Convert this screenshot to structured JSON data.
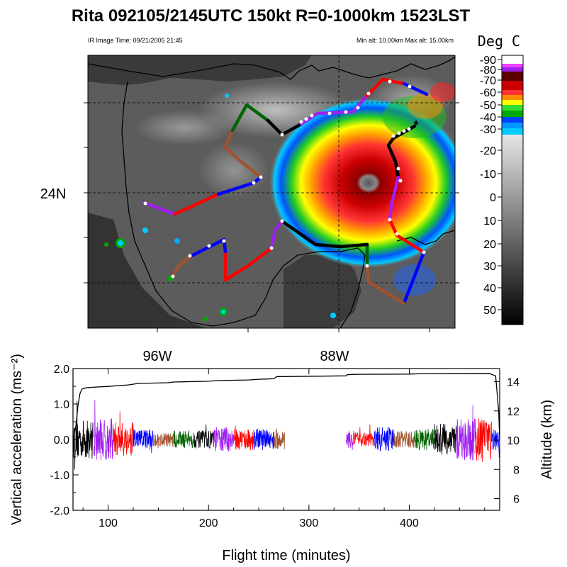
{
  "chart_data": [
    {
      "type": "map",
      "title": "Rita 092105/2145UTC 150kt  R=0-1000km 1523LST",
      "subtitle_left": "IR Image Time: 09/21/2005 21:45",
      "subtitle_right": "Min alt: 10.00km  Max alt: 15.00km",
      "lat_labels": [
        "24N"
      ],
      "lon_labels": [
        "96W",
        "88W"
      ],
      "colorbar": {
        "title": "Deg C",
        "tick_labels": [
          "-90",
          "-80",
          "-70",
          "-60",
          "-50",
          "-40",
          "-30",
          "-20",
          "-10",
          "0",
          "10",
          "20",
          "30",
          "40",
          "50"
        ],
        "colors": [
          "#ffffff",
          "#e040ff",
          "#5a0000",
          "#cc0000",
          "#ff3333",
          "#ff8c00",
          "#ffff00",
          "#00aa00",
          "#33dd33",
          "#0044ff",
          "#00ccff"
        ]
      },
      "track_colors": [
        "#000000",
        "#a020f0",
        "#ff0000",
        "#0000ff",
        "#a0522d",
        "#006400"
      ]
    },
    {
      "type": "line",
      "xlabel": "Flight time (minutes)",
      "ylabel": "Vertical acceleration (ms⁻²)",
      "ylabel_right": "Altitude (km)",
      "x_ticks": [
        "100",
        "200",
        "300",
        "400"
      ],
      "y_ticks": [
        "2.0",
        "1.0",
        "0.0",
        "-1.0",
        "-2.0"
      ],
      "y2_ticks": [
        "14",
        "12",
        "10",
        "8",
        "6"
      ],
      "xlim": [
        65,
        490
      ],
      "ylim": [
        -2.0,
        2.0
      ],
      "y2lim": [
        5.2,
        14.9
      ],
      "altitude_series": {
        "name": "",
        "x": [
          65,
          68,
          70,
          72,
          74,
          78,
          85,
          100,
          120,
          130,
          160,
          165,
          200,
          210,
          240,
          250,
          265,
          268,
          275,
          337,
          338,
          345,
          400,
          410,
          480,
          482,
          486,
          489,
          490
        ],
        "y": [
          10.0,
          11.0,
          12.4,
          13.2,
          13.5,
          13.58,
          13.62,
          13.68,
          13.78,
          13.88,
          13.93,
          13.98,
          14.03,
          14.08,
          14.12,
          14.17,
          14.2,
          14.35,
          14.35,
          14.4,
          14.48,
          14.5,
          14.52,
          14.54,
          14.55,
          14.5,
          14.4,
          12.0,
          10.0
        ]
      },
      "acceleration_segments": [
        {
          "color": "#000000",
          "x_range": [
            65,
            85
          ],
          "amplitude": 0.55
        },
        {
          "color": "#a020f0",
          "x_range": [
            85,
            105
          ],
          "amplitude": 0.6
        },
        {
          "color": "#ff0000",
          "x_range": [
            105,
            125
          ],
          "amplitude": 0.5
        },
        {
          "color": "#0000ff",
          "x_range": [
            125,
            145
          ],
          "amplitude": 0.3
        },
        {
          "color": "#a0522d",
          "x_range": [
            145,
            165
          ],
          "amplitude": 0.2
        },
        {
          "color": "#006400",
          "x_range": [
            165,
            185
          ],
          "amplitude": 0.25
        },
        {
          "color": "#000000",
          "x_range": [
            185,
            205
          ],
          "amplitude": 0.25
        },
        {
          "color": "#a020f0",
          "x_range": [
            205,
            225
          ],
          "amplitude": 0.35
        },
        {
          "color": "#ff0000",
          "x_range": [
            225,
            245
          ],
          "amplitude": 0.3
        },
        {
          "color": "#0000ff",
          "x_range": [
            245,
            265
          ],
          "amplitude": 0.3
        },
        {
          "color": "#a0522d",
          "x_range": [
            265,
            276
          ],
          "amplitude": 0.3
        },
        {
          "color": "#a020f0",
          "x_range": [
            337,
            345
          ],
          "amplitude": 0.25
        },
        {
          "color": "#ff0000",
          "x_range": [
            345,
            365
          ],
          "amplitude": 0.2
        },
        {
          "color": "#0000ff",
          "x_range": [
            365,
            385
          ],
          "amplitude": 0.35
        },
        {
          "color": "#a0522d",
          "x_range": [
            385,
            405
          ],
          "amplitude": 0.25
        },
        {
          "color": "#006400",
          "x_range": [
            405,
            425
          ],
          "amplitude": 0.3
        },
        {
          "color": "#000000",
          "x_range": [
            425,
            447
          ],
          "amplitude": 0.45
        },
        {
          "color": "#a020f0",
          "x_range": [
            447,
            465
          ],
          "amplitude": 0.6
        },
        {
          "color": "#ff0000",
          "x_range": [
            465,
            482
          ],
          "amplitude": 0.6
        },
        {
          "color": "#0000ff",
          "x_range": [
            482,
            490
          ],
          "amplitude": 0.3
        }
      ]
    }
  ]
}
